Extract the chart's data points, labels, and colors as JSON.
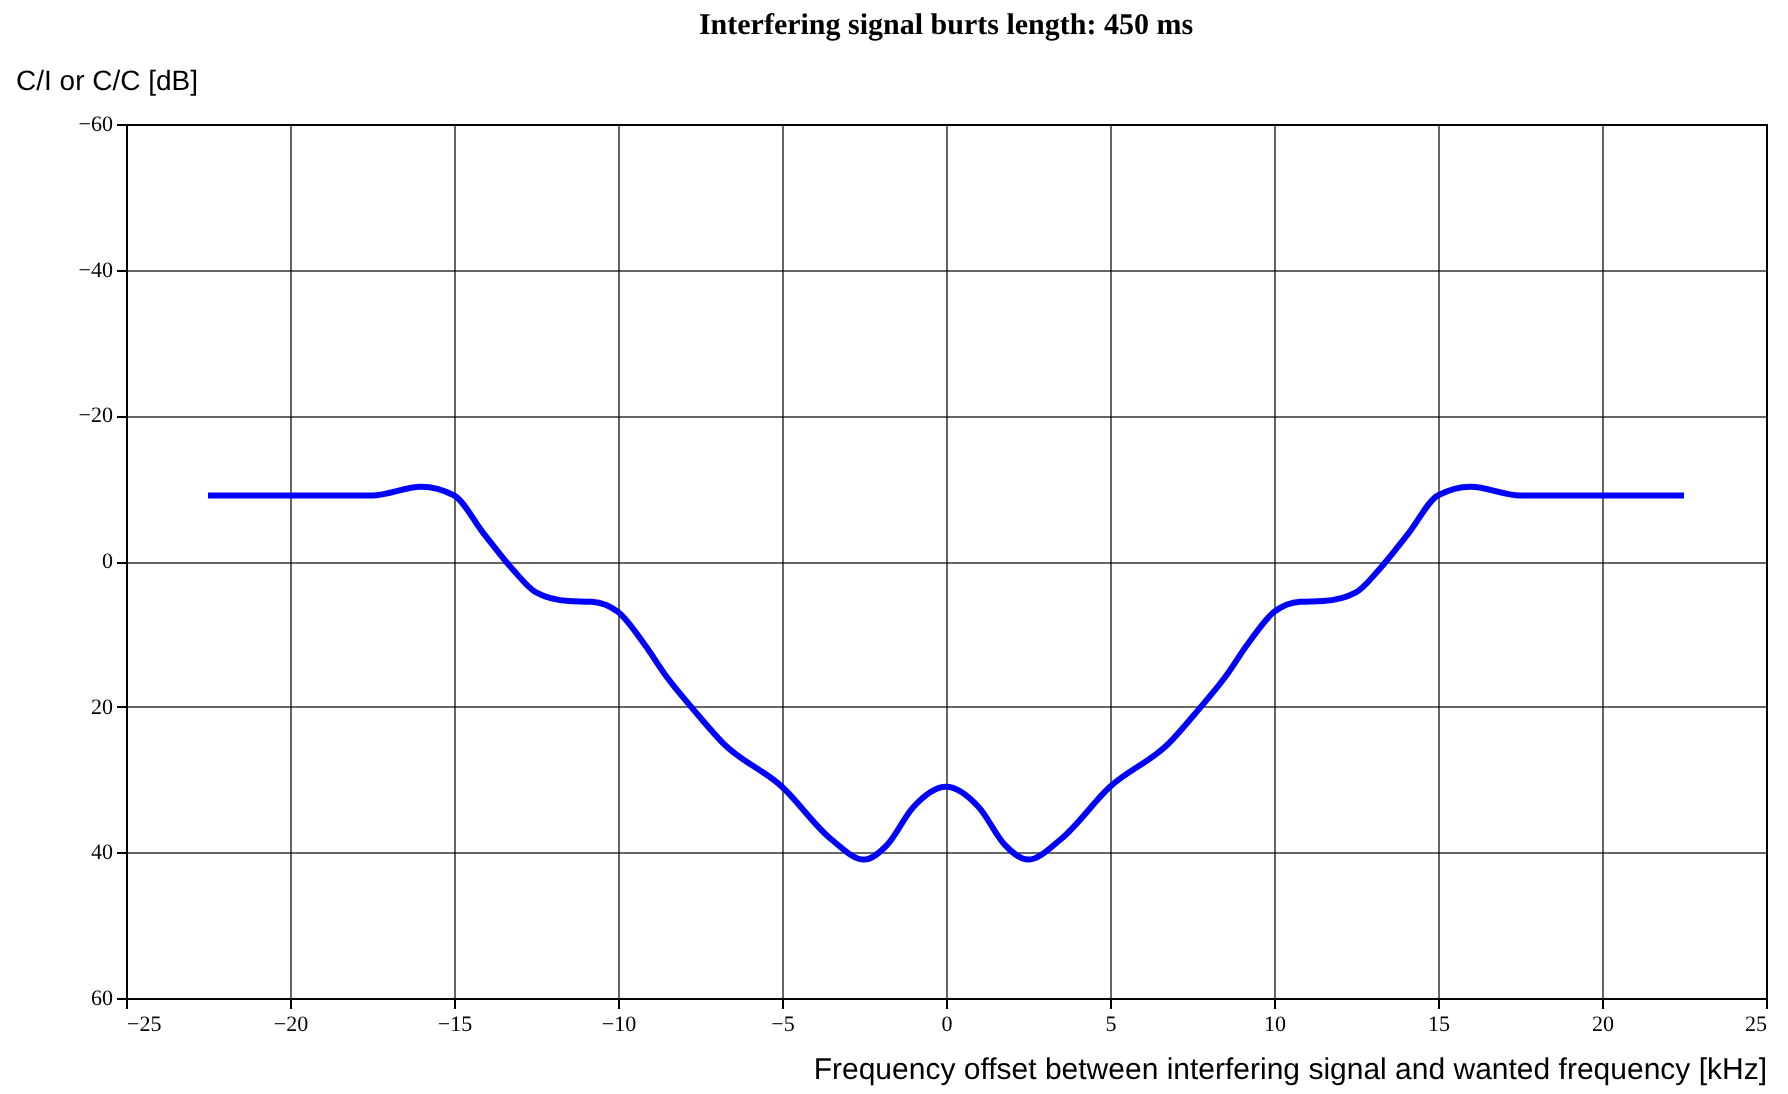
{
  "chart_data": {
    "type": "line",
    "title": "Interfering signal burts length: 450 ms",
    "xlabel": "Frequency offset between interfering signal and wanted frequency [kHz]",
    "ylabel": "C/I or C/C [dB]",
    "x": [
      -22.5,
      -17.5,
      -16,
      -15,
      -14.1,
      -13.2,
      -12.5,
      -11.5,
      -10.8,
      -10,
      -9.2,
      -8.5,
      -7.7,
      -6.8,
      -5,
      -3.5,
      -2.5,
      -1.8,
      -1,
      0,
      1,
      1.8,
      2.5,
      3.5,
      5,
      6.8,
      7.7,
      8.5,
      9.2,
      10,
      10.8,
      11.5,
      12.5,
      13.2,
      14.1,
      15,
      16,
      17.5,
      22.5
    ],
    "series": [
      {
        "color": "#0000ff",
        "values": [
          -9,
          -9,
          -10.2,
          -9,
          -3.8,
          1.2,
          4.3,
          5.5,
          5.6,
          7,
          11.4,
          16,
          20.4,
          25,
          31,
          38.2,
          41,
          39,
          33.8,
          31,
          33.8,
          39,
          41,
          38.2,
          31,
          25,
          20.4,
          16,
          11.4,
          7,
          5.6,
          5.5,
          4.3,
          1.2,
          -3.8,
          -9,
          -10.2,
          -9,
          -9
        ]
      }
    ],
    "xlim": [
      -25,
      25
    ],
    "xticks": [
      -25,
      -20,
      -15,
      -10,
      -5,
      0,
      5,
      10,
      15,
      20,
      25
    ],
    "ylim": [
      60,
      -60
    ],
    "yticks": [
      -60,
      -40,
      -20,
      0,
      20,
      40,
      60
    ],
    "grid": true,
    "legend": false,
    "marker": "none",
    "line_style": "solid"
  }
}
